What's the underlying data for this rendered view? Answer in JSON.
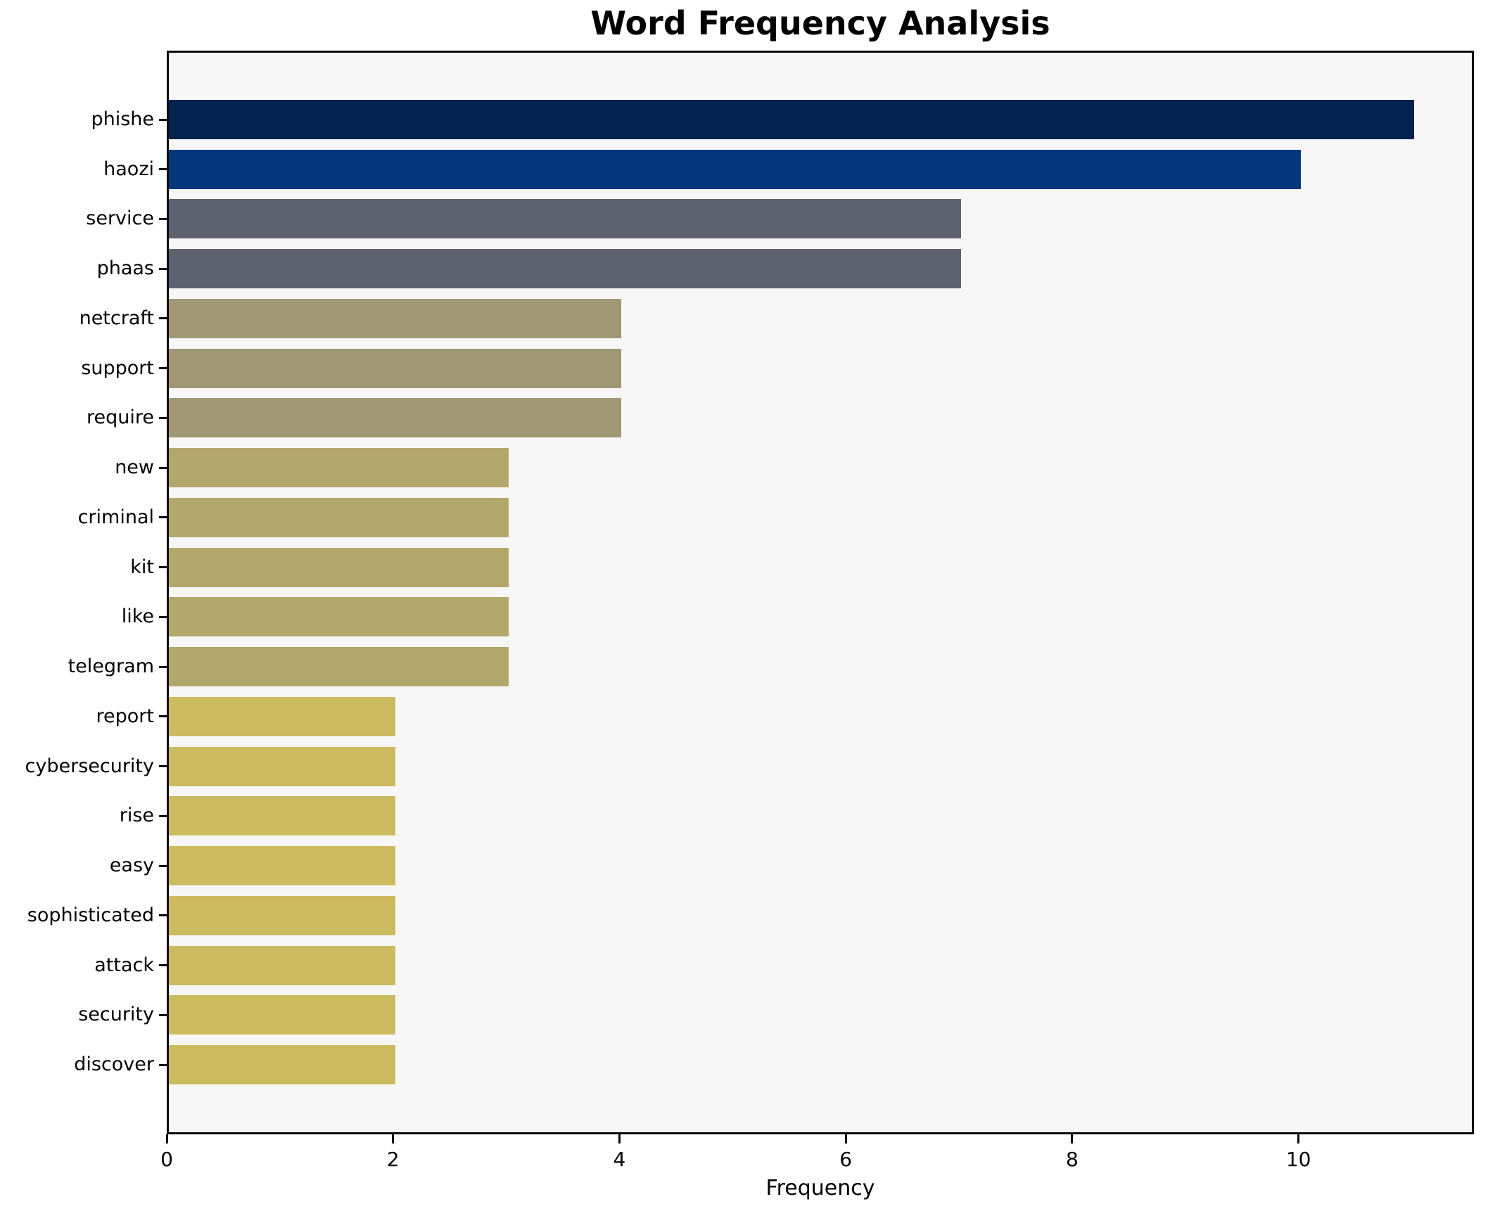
{
  "title": "Word Frequency Analysis",
  "chart_data": {
    "type": "bar",
    "orientation": "horizontal",
    "title": "Word Frequency Analysis",
    "xlabel": "Frequency",
    "ylabel": "",
    "categories": [
      "phishe",
      "haozi",
      "service",
      "phaas",
      "netcraft",
      "support",
      "require",
      "new",
      "criminal",
      "kit",
      "like",
      "telegram",
      "report",
      "cybersecurity",
      "rise",
      "easy",
      "sophisticated",
      "attack",
      "security",
      "discover"
    ],
    "values": [
      11,
      10,
      7,
      7,
      4,
      4,
      4,
      3,
      3,
      3,
      3,
      3,
      2,
      2,
      2,
      2,
      2,
      2,
      2,
      2
    ],
    "bar_colors": [
      "#02234e",
      "#04387c",
      "#5e626f",
      "#5e626f",
      "#a09775",
      "#a09775",
      "#a09775",
      "#b3a86c",
      "#b3a86c",
      "#b3a86c",
      "#b3a86c",
      "#b3a86c",
      "#cdbb5f",
      "#cdbb5f",
      "#cdbb5f",
      "#cdbb5f",
      "#cdbb5f",
      "#cdbb5f",
      "#cdbb5f",
      "#cdbb5f"
    ],
    "xlim": [
      0,
      11.55
    ],
    "xticks": [
      0,
      2,
      4,
      6,
      8,
      10
    ],
    "grid": false,
    "legend": "none",
    "plot_bg": "#f7f7f8",
    "figure_bg": "#ffffff",
    "spine_color": "#0a0a0a",
    "text_color": "#000000"
  }
}
